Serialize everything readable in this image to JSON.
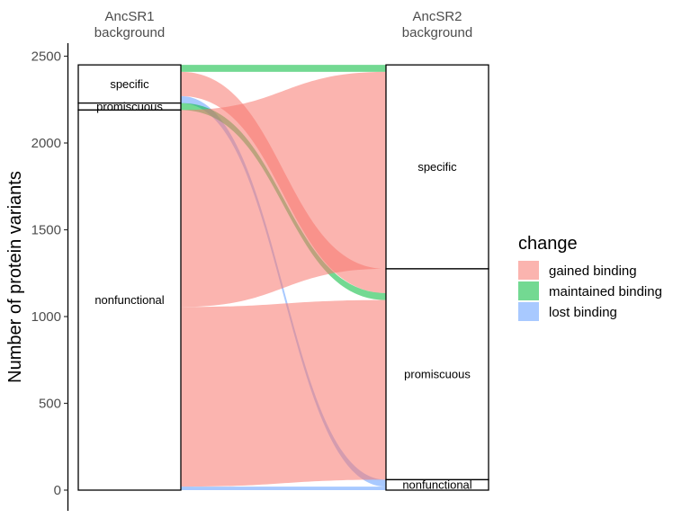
{
  "chart_data": {
    "type": "alluvial",
    "ylabel": "Number of protein variants",
    "ylim": [
      0,
      2500
    ],
    "yticks": [
      0,
      500,
      1000,
      1500,
      2000,
      2500
    ],
    "axes": [
      {
        "header": [
          "AncSR1",
          "background"
        ]
      },
      {
        "header": [
          "AncSR2",
          "background"
        ]
      }
    ],
    "strata": {
      "left": [
        {
          "name": "specific",
          "value": 220
        },
        {
          "name": "promiscuous",
          "value": 40
        },
        {
          "name": "nonfunctional",
          "value": 2190
        }
      ],
      "right": [
        {
          "name": "specific",
          "value": 1175
        },
        {
          "name": "promiscuous",
          "value": 1215
        },
        {
          "name": "nonfunctional",
          "value": 60
        }
      ]
    },
    "flows": [
      {
        "from": "specific",
        "to": "specific",
        "value": 40,
        "change": "maintained binding"
      },
      {
        "from": "specific",
        "to": "promiscuous",
        "value": 140,
        "change": "gained binding"
      },
      {
        "from": "specific",
        "to": "nonfunctional",
        "value": 40,
        "change": "lost binding"
      },
      {
        "from": "promiscuous",
        "to": "promiscuous",
        "value": 40,
        "change": "maintained binding"
      },
      {
        "from": "nonfunctional",
        "to": "specific",
        "value": 1135,
        "change": "gained binding"
      },
      {
        "from": "nonfunctional",
        "to": "promiscuous",
        "value": 1035,
        "change": "gained binding"
      },
      {
        "from": "nonfunctional",
        "to": "nonfunctional",
        "value": 20,
        "change": "lost binding"
      }
    ],
    "legend": {
      "title": "change",
      "placement": "right",
      "entries": [
        {
          "label": "gained binding",
          "color": "#F8766D"
        },
        {
          "label": "maintained binding",
          "color": "#00BA38"
        },
        {
          "label": "lost binding",
          "color": "#619CFF"
        }
      ]
    },
    "flow_opacity": 0.55
  }
}
